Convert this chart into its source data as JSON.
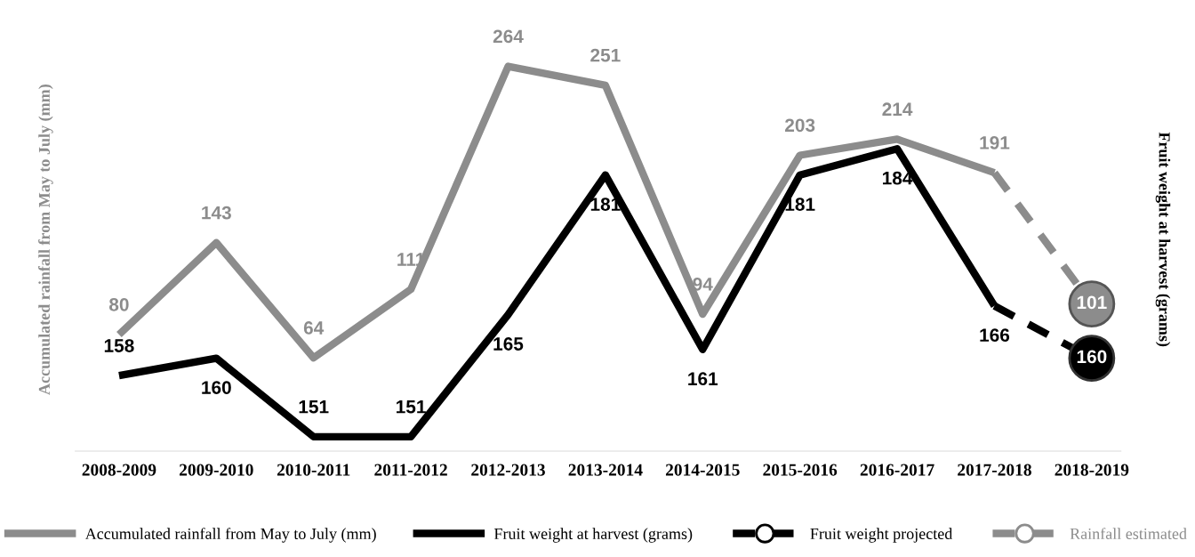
{
  "chart_data": {
    "type": "line",
    "categories": [
      "2008-2009",
      "2009-2010",
      "2010-2011",
      "2011-2012",
      "2012-2013",
      "2013-2014",
      "2014-2015",
      "2015-2016",
      "2016-2017",
      "2017-2018",
      "2018-2019"
    ],
    "ylabel": "Accumulated rainfall from May to July (mm)",
    "y2label": "Fruit weight at harvest (grams)",
    "tick_labels": "x",
    "grid": false,
    "legend": "bottom",
    "line_style": "solid",
    "marker": "none",
    "series": [
      {
        "name": "Accumulated rainfall from May to July (mm)",
        "color": "#8c8c8c",
        "axis": "y",
        "values": [
          80,
          143,
          64,
          111,
          264,
          251,
          94,
          203,
          214,
          191,
          null
        ],
        "value_labels": [
          "80",
          "143",
          "64",
          "111",
          "264",
          "251",
          "94",
          "203",
          "214",
          "191",
          null
        ]
      },
      {
        "name": "Fruit weight at harvest (grams)",
        "color": "#000000",
        "axis": "y2",
        "values": [
          158,
          160,
          151,
          151,
          165,
          181,
          161,
          181,
          184,
          166,
          null
        ],
        "value_labels": [
          "158",
          "160",
          "151",
          "151",
          "165",
          "181",
          "161",
          "181",
          "184",
          "166",
          null
        ]
      },
      {
        "name": "Fruit weight projected",
        "color": "#000000",
        "axis": "y2",
        "line_style": "dashed",
        "values": [
          null,
          null,
          null,
          null,
          null,
          null,
          null,
          null,
          null,
          166,
          160
        ]
      },
      {
        "name": "Rainfall estimated",
        "color": "#8c8c8c",
        "axis": "y",
        "line_style": "dashed",
        "values": [
          null,
          null,
          null,
          null,
          null,
          null,
          null,
          null,
          null,
          191,
          101
        ]
      },
      {
        "type": "scatter",
        "color": "#000000",
        "axis": "y2",
        "marker": "circle",
        "values": [
          null,
          null,
          null,
          null,
          null,
          null,
          null,
          null,
          null,
          null,
          160
        ],
        "value_labels": [
          null,
          null,
          null,
          null,
          null,
          null,
          null,
          null,
          null,
          null,
          "160"
        ]
      },
      {
        "type": "scatter",
        "color": "#8c8c8c",
        "axis": "y",
        "marker": "circle",
        "values": [
          null,
          null,
          null,
          null,
          null,
          null,
          null,
          null,
          null,
          null,
          101
        ],
        "value_labels": [
          null,
          null,
          null,
          null,
          null,
          null,
          null,
          null,
          null,
          null,
          "101"
        ]
      }
    ]
  }
}
